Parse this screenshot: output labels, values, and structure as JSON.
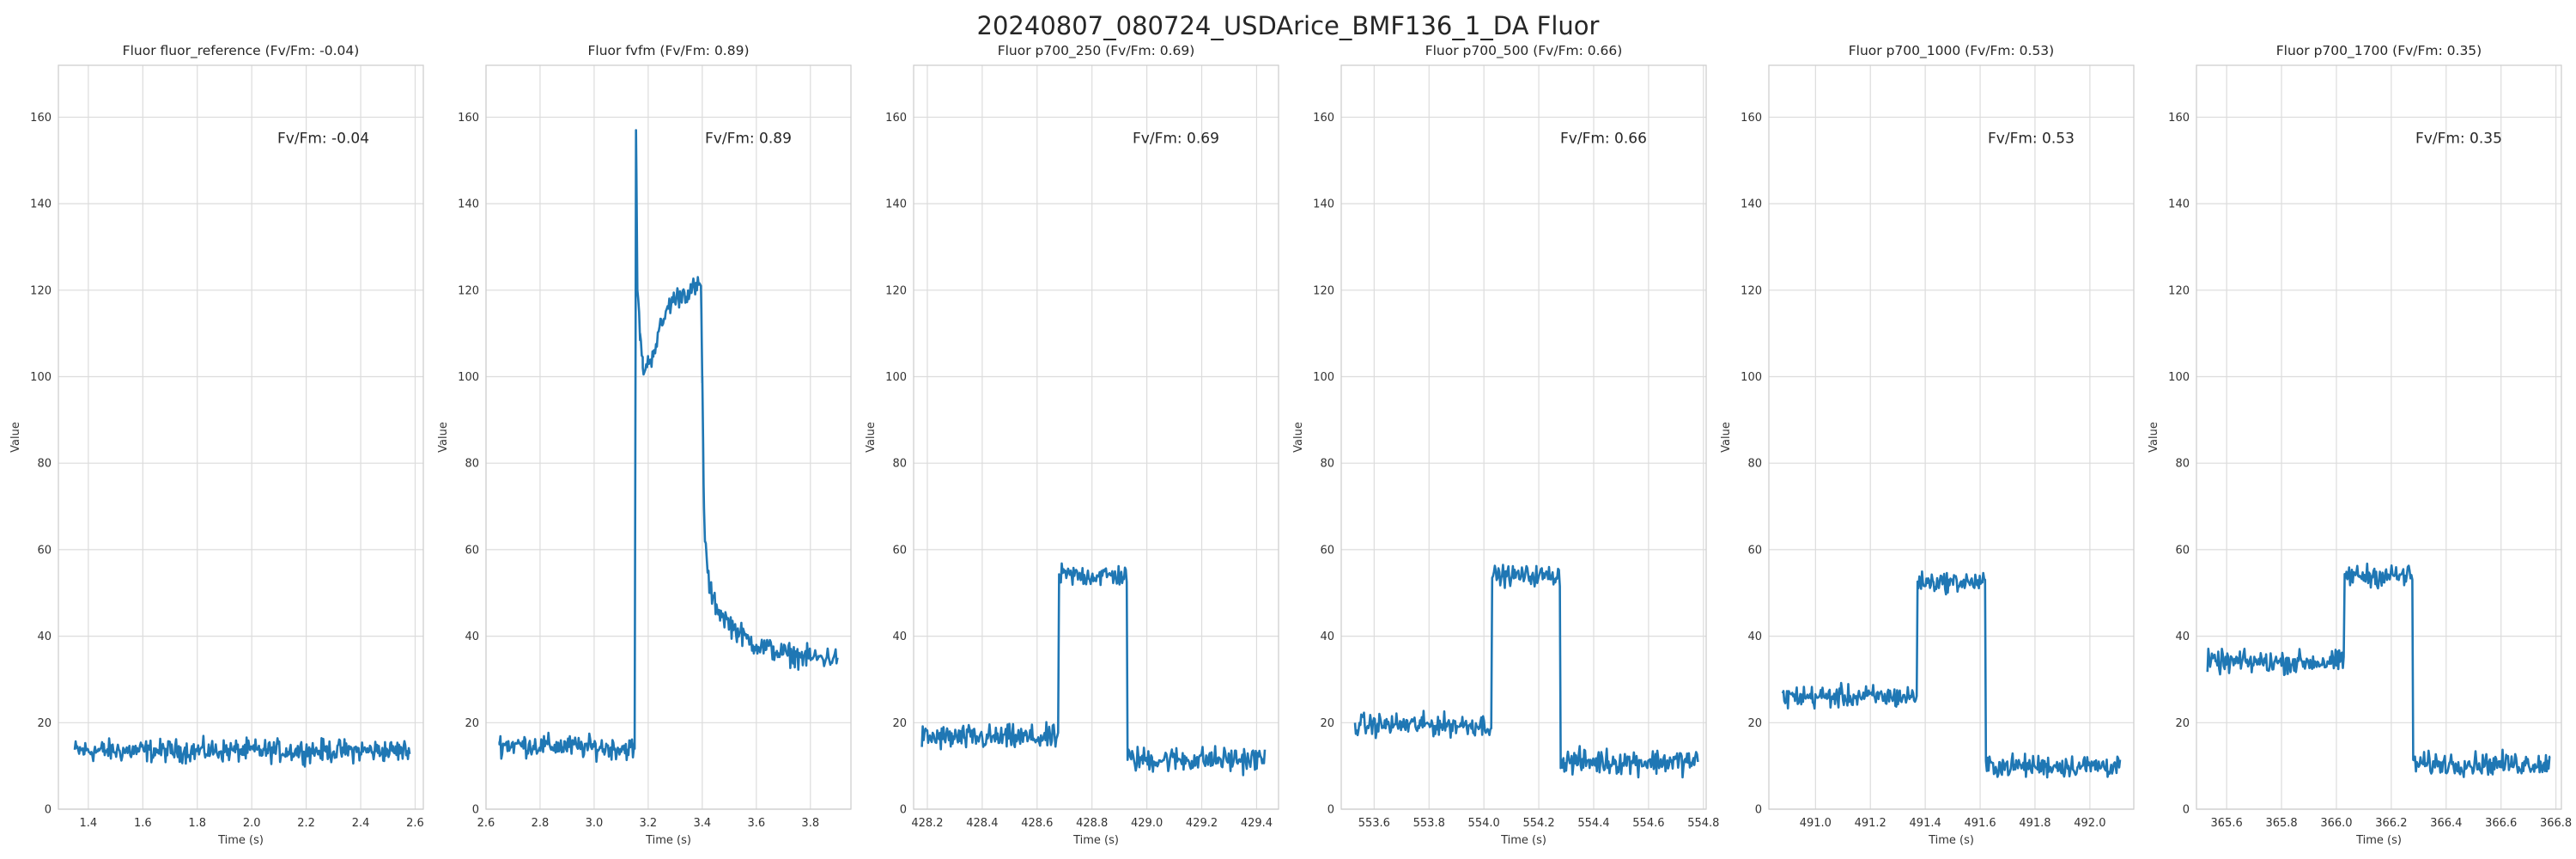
{
  "figure_title": "20240807_080724_USDArice_BMF136_1_DA Fluor",
  "colors": {
    "line": "#1f77b4",
    "grid": "#dcdcdc",
    "spine": "#cccccc"
  },
  "chart_data": [
    {
      "type": "line",
      "title": "Fluor fluor_reference (Fv/Fm: -0.04)",
      "annotation": "Fv/Fm: -0.04",
      "xlabel": "Time (s)",
      "ylabel": "Value",
      "xlim": [
        1.29,
        2.63
      ],
      "ylim": [
        0,
        172
      ],
      "xticks": [
        1.4,
        1.6,
        1.8,
        2.0,
        2.2,
        2.4,
        2.6
      ],
      "xtick_labels": [
        "1.4",
        "1.6",
        "1.8",
        "2.0",
        "2.2",
        "2.4",
        "2.6"
      ],
      "yticks": [
        0,
        20,
        40,
        60,
        80,
        100,
        120,
        140,
        160
      ],
      "ytick_labels": [
        "0",
        "20",
        "40",
        "60",
        "80",
        "100",
        "120",
        "140",
        "160"
      ],
      "grid": true,
      "legend": "none",
      "series": [
        {
          "x_range": [
            1.35,
            2.58
          ],
          "segments": [
            {
              "start": 1.35,
              "end": 2.58,
              "level": 13.5,
              "noise": 1.6
            }
          ]
        }
      ]
    },
    {
      "type": "line",
      "title": "Fluor fvfm (Fv/Fm: 0.89)",
      "annotation": "Fv/Fm: 0.89",
      "xlabel": "Time (s)",
      "ylabel": "Value",
      "xlim": [
        2.6,
        3.95
      ],
      "ylim": [
        0,
        172
      ],
      "xticks": [
        2.6,
        2.8,
        3.0,
        3.2,
        3.4,
        3.6,
        3.8
      ],
      "xtick_labels": [
        "2.6",
        "2.8",
        "3.0",
        "3.2",
        "3.4",
        "3.6",
        "3.8"
      ],
      "yticks": [
        0,
        20,
        40,
        60,
        80,
        100,
        120,
        140,
        160
      ],
      "ytick_labels": [
        "0",
        "20",
        "40",
        "60",
        "80",
        "100",
        "120",
        "140",
        "160"
      ],
      "grid": true,
      "legend": "none",
      "series": [
        {
          "x_range": [
            2.65,
            3.9
          ],
          "points": [
            [
              2.65,
              15
            ],
            [
              3.15,
              14
            ],
            [
              3.155,
              157
            ],
            [
              3.16,
              120
            ],
            [
              3.17,
              110
            ],
            [
              3.18,
              102
            ],
            [
              3.2,
              103
            ],
            [
              3.22,
              106
            ],
            [
              3.25,
              112
            ],
            [
              3.28,
              117
            ],
            [
              3.32,
              119
            ],
            [
              3.36,
              120
            ],
            [
              3.395,
              121
            ],
            [
              3.4,
              100
            ],
            [
              3.405,
              75
            ],
            [
              3.41,
              62
            ],
            [
              3.42,
              55
            ],
            [
              3.43,
              50
            ],
            [
              3.46,
              46
            ],
            [
              3.5,
              43
            ],
            [
              3.55,
              40
            ],
            [
              3.6,
              38
            ],
            [
              3.7,
              36
            ],
            [
              3.8,
              35
            ],
            [
              3.9,
              35
            ]
          ],
          "noise": 1.6
        }
      ]
    },
    {
      "type": "line",
      "title": "Fluor p700_250 (Fv/Fm: 0.69)",
      "annotation": "Fv/Fm: 0.69",
      "xlabel": "Time (s)",
      "ylabel": "Value",
      "xlim": [
        428.15,
        429.48
      ],
      "ylim": [
        0,
        172
      ],
      "xticks": [
        428.2,
        428.4,
        428.6,
        428.8,
        429.0,
        429.2,
        429.4
      ],
      "xtick_labels": [
        "428.2",
        "428.4",
        "428.6",
        "428.8",
        "429.0",
        "429.2",
        "429.4"
      ],
      "yticks": [
        0,
        20,
        40,
        60,
        80,
        100,
        120,
        140,
        160
      ],
      "ytick_labels": [
        "0",
        "20",
        "40",
        "60",
        "80",
        "100",
        "120",
        "140",
        "160"
      ],
      "grid": true,
      "legend": "none",
      "series": [
        {
          "x_range": [
            428.18,
            429.43
          ],
          "segments": [
            {
              "start": 428.18,
              "end": 428.68,
              "level": 16.5,
              "noise": 1.8
            },
            {
              "start": 428.68,
              "end": 428.93,
              "level": 54,
              "noise": 1.6
            },
            {
              "start": 428.93,
              "end": 429.43,
              "level": 11.5,
              "noise": 1.8
            }
          ]
        }
      ]
    },
    {
      "type": "line",
      "title": "Fluor p700_500 (Fv/Fm: 0.66)",
      "annotation": "Fv/Fm: 0.66",
      "xlabel": "Time (s)",
      "ylabel": "Value",
      "xlim": [
        553.48,
        554.81
      ],
      "ylim": [
        0,
        172
      ],
      "xticks": [
        553.6,
        553.8,
        554.0,
        554.2,
        554.4,
        554.6,
        554.8
      ],
      "xtick_labels": [
        "553.6",
        "553.8",
        "554.0",
        "554.2",
        "554.4",
        "554.6",
        "554.8"
      ],
      "yticks": [
        0,
        20,
        40,
        60,
        80,
        100,
        120,
        140,
        160
      ],
      "ytick_labels": [
        "0",
        "20",
        "40",
        "60",
        "80",
        "100",
        "120",
        "140",
        "160"
      ],
      "grid": true,
      "legend": "none",
      "series": [
        {
          "x_range": [
            553.53,
            554.78
          ],
          "segments": [
            {
              "start": 553.53,
              "end": 554.03,
              "level": 19.5,
              "noise": 1.6
            },
            {
              "start": 554.03,
              "end": 554.28,
              "level": 54,
              "noise": 1.4
            },
            {
              "start": 554.28,
              "end": 554.78,
              "level": 11,
              "noise": 1.8
            }
          ]
        }
      ]
    },
    {
      "type": "line",
      "title": "Fluor p700_1000 (Fv/Fm: 0.53)",
      "annotation": "Fv/Fm: 0.53",
      "xlabel": "Time (s)",
      "ylabel": "Value",
      "xlim": [
        490.83,
        492.16
      ],
      "ylim": [
        0,
        172
      ],
      "xticks": [
        491.0,
        491.2,
        491.4,
        491.6,
        491.8,
        492.0
      ],
      "xtick_labels": [
        "491.0",
        "491.2",
        "491.4",
        "491.6",
        "491.8",
        "492.0"
      ],
      "yticks": [
        0,
        20,
        40,
        60,
        80,
        100,
        120,
        140,
        160
      ],
      "ytick_labels": [
        "0",
        "20",
        "40",
        "60",
        "80",
        "100",
        "120",
        "140",
        "160"
      ],
      "grid": true,
      "legend": "none",
      "series": [
        {
          "x_range": [
            490.88,
            492.11
          ],
          "segments": [
            {
              "start": 490.88,
              "end": 491.37,
              "level": 26,
              "noise": 1.6
            },
            {
              "start": 491.37,
              "end": 491.62,
              "level": 52.5,
              "noise": 1.4
            },
            {
              "start": 491.62,
              "end": 492.11,
              "level": 10,
              "noise": 1.6
            }
          ]
        }
      ]
    },
    {
      "type": "line",
      "title": "Fluor p700_1700 (Fv/Fm: 0.35)",
      "annotation": "Fv/Fm: 0.35",
      "xlabel": "Time (s)",
      "ylabel": "Value",
      "xlim": [
        365.49,
        366.82
      ],
      "ylim": [
        0,
        172
      ],
      "xticks": [
        365.6,
        365.8,
        366.0,
        366.2,
        366.4,
        366.6,
        366.8
      ],
      "xtick_labels": [
        "365.6",
        "365.8",
        "366.0",
        "366.2",
        "366.4",
        "366.6",
        "366.8"
      ],
      "yticks": [
        0,
        20,
        40,
        60,
        80,
        100,
        120,
        140,
        160
      ],
      "ytick_labels": [
        "0",
        "20",
        "40",
        "60",
        "80",
        "100",
        "120",
        "140",
        "160"
      ],
      "grid": true,
      "legend": "none",
      "series": [
        {
          "x_range": [
            365.53,
            366.78
          ],
          "segments": [
            {
              "start": 365.53,
              "end": 366.03,
              "level": 34,
              "noise": 1.6
            },
            {
              "start": 366.03,
              "end": 366.28,
              "level": 54,
              "noise": 1.6
            },
            {
              "start": 366.28,
              "end": 366.78,
              "level": 10.5,
              "noise": 1.6
            }
          ]
        }
      ]
    }
  ]
}
